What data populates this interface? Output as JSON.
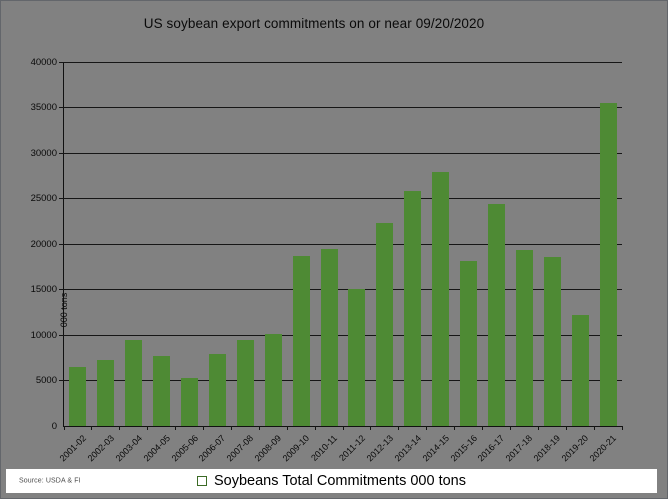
{
  "title": "US soybean export commitments on or near 09/20/2020",
  "legend": {
    "label": "Soybeans Total Commitments 000 tons"
  },
  "source": "Source: USDA & FI",
  "colors": {
    "background": "#818181",
    "bar": "#4e8a34",
    "bar_border": "#3c6b26",
    "gridline": "#161616",
    "legend_band": "#ffffff"
  },
  "chart_data": {
    "type": "bar",
    "title": "US soybean export commitments on or near 09/20/2020",
    "categories": [
      "2001-02",
      "2002-03",
      "2003-04",
      "2004-05",
      "2005-06",
      "2006-07",
      "2007-08",
      "2008-09",
      "2009-10",
      "2010-11",
      "2011-12",
      "2012-13",
      "2013-14",
      "2014-15",
      "2015-16",
      "2016-17",
      "2017-18",
      "2018-19",
      "2019-20",
      "2020-21"
    ],
    "values": [
      6500,
      7300,
      9500,
      7700,
      5300,
      7900,
      9400,
      10100,
      18700,
      19500,
      15100,
      22300,
      25800,
      27900,
      18100,
      24400,
      19300,
      18600,
      12200,
      35500
    ],
    "series_name": "Soybeans Total Commitments 000 tons",
    "xlabel": "",
    "ylabel": "000 tons",
    "ylim": [
      0,
      40000
    ],
    "ytick_step": 5000,
    "grid": true,
    "legend_position": "bottom",
    "bar_color": "#4e8a34"
  }
}
